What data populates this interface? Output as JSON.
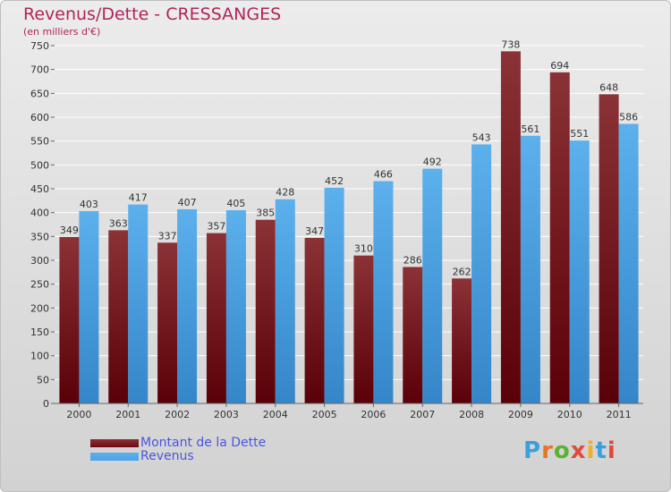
{
  "header": {
    "title": "Revenus/Dette - CRESSANGES",
    "subtitle": "(en milliers d'€)"
  },
  "legend": {
    "items": [
      {
        "label": "Montant de la Dette",
        "color": "#6b0a10"
      },
      {
        "label": "Revenus",
        "color": "#4aa3e6"
      }
    ]
  },
  "logo": {
    "text": "Proxiti",
    "colors": [
      "#3aa0dc",
      "#e8742a",
      "#5db030",
      "#e04a3a",
      "#f0b020",
      "#3aa0dc",
      "#e04a3a"
    ]
  },
  "colors": {
    "debt_top": "#8a3236",
    "debt_bottom": "#5a0008",
    "revenue_top": "#5cb0ec",
    "revenue_bottom": "#3486c8",
    "grid": "#ffffff",
    "axis_text": "#333333"
  },
  "chart_data": {
    "type": "bar",
    "title": "Revenus/Dette - CRESSANGES",
    "subtitle": "(en milliers d'€)",
    "categories": [
      "2000",
      "2001",
      "2002",
      "2003",
      "2004",
      "2005",
      "2006",
      "2007",
      "2008",
      "2009",
      "2010",
      "2011"
    ],
    "series": [
      {
        "name": "Montant de la Dette",
        "values": [
          349,
          363,
          337,
          357,
          385,
          347,
          310,
          286,
          262,
          738,
          694,
          648
        ]
      },
      {
        "name": "Revenus",
        "values": [
          403,
          417,
          407,
          405,
          428,
          452,
          466,
          492,
          543,
          561,
          551,
          586
        ]
      }
    ],
    "ylim": [
      0,
      750
    ],
    "ytick_step": 50,
    "grid": true,
    "legend_position": "bottom-left",
    "data_labels": true
  }
}
